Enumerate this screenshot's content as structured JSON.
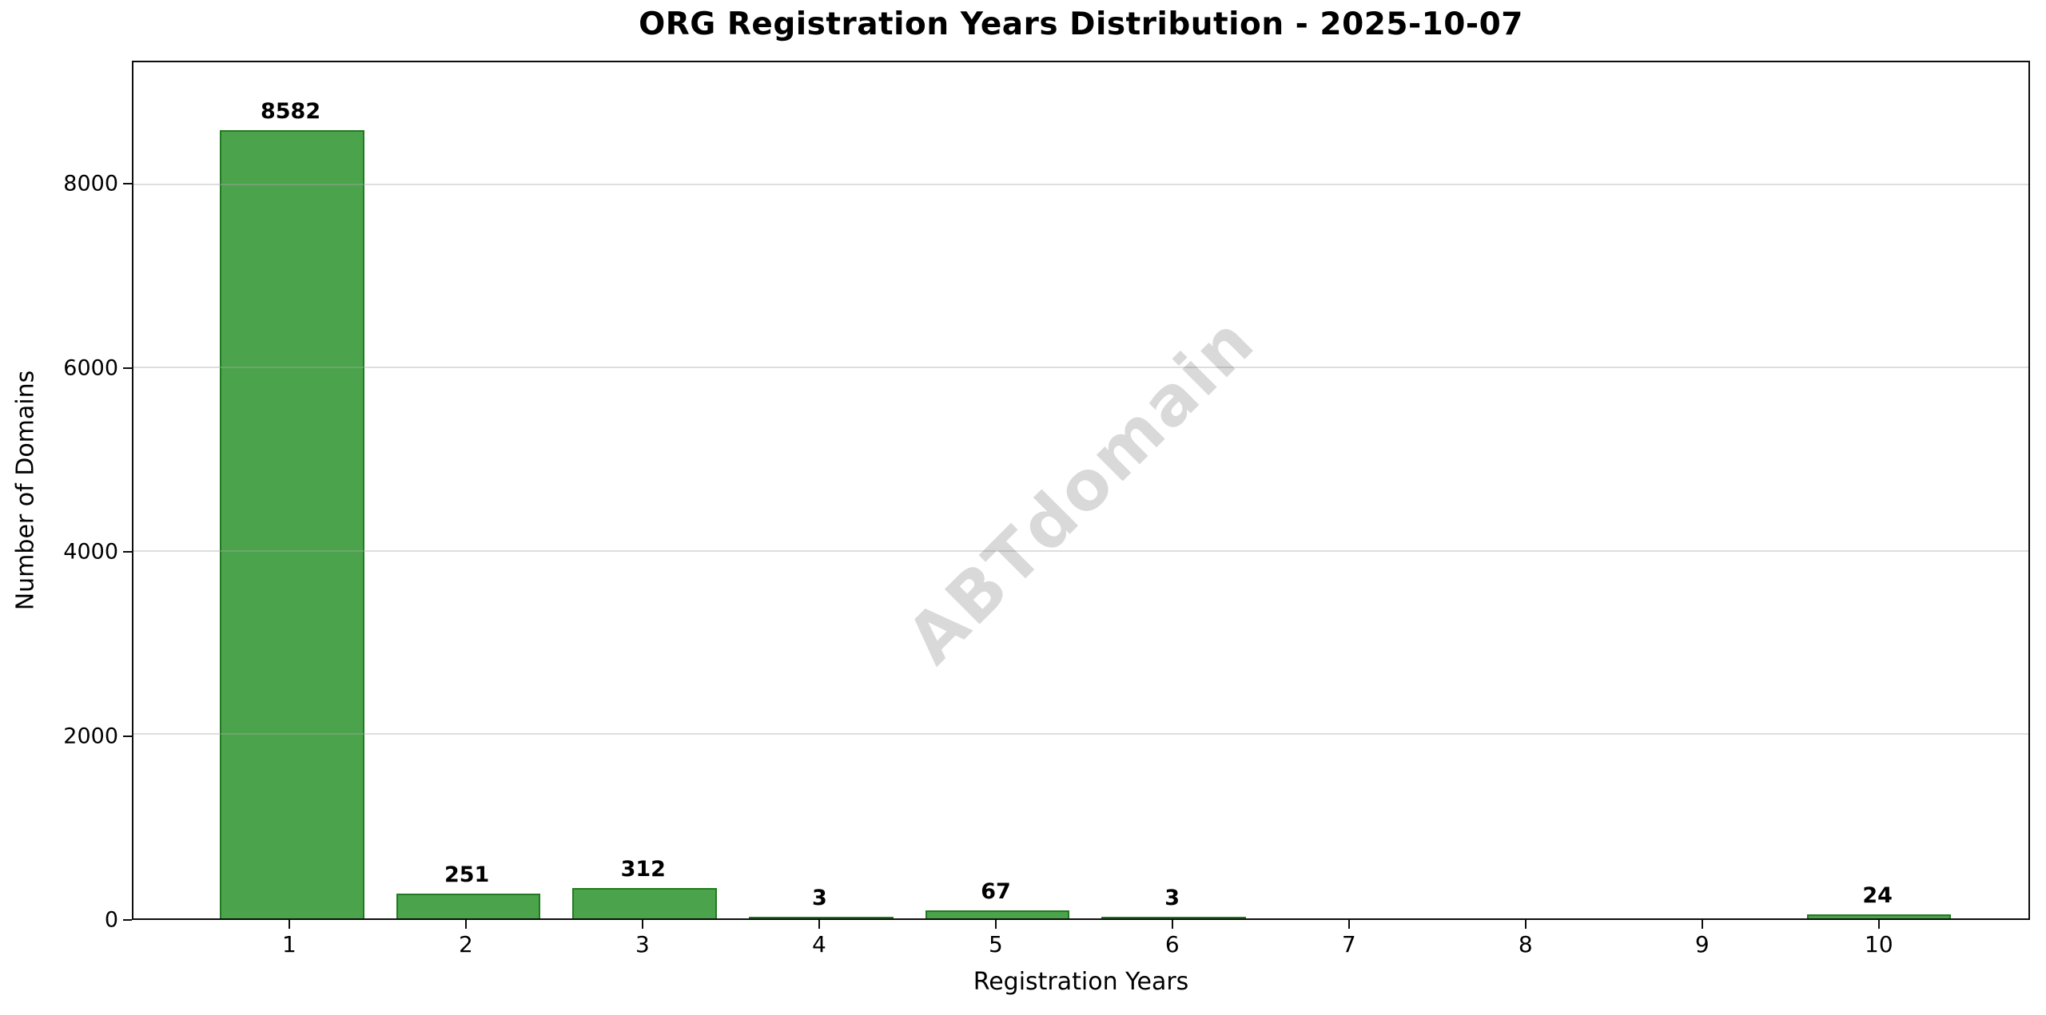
{
  "chart": {
    "title": "ORG Registration Years Distribution - 2025-10-07",
    "xlabel": "Registration Years",
    "ylabel": "Number of Domains",
    "watermark": "ABTdomain"
  },
  "chart_data": {
    "type": "bar",
    "title": "ORG Registration Years Distribution - 2025-10-07",
    "xlabel": "Registration Years",
    "ylabel": "Number of Domains",
    "categories": [
      "1",
      "2",
      "3",
      "4",
      "5",
      "6",
      "7",
      "8",
      "9",
      "10"
    ],
    "values": [
      8582,
      251,
      312,
      3,
      67,
      3,
      0,
      0,
      0,
      24
    ],
    "value_labels_shown_for_nonzero_only": true,
    "yticks": [
      0,
      2000,
      4000,
      6000,
      8000
    ],
    "ylim": [
      0,
      9340
    ],
    "grid": true,
    "legend_position": "none",
    "bar_color": "#4ba44b",
    "bar_edge_color": "#217a21",
    "grid_color": "rgba(168,168,168,0.38)",
    "watermark_text": "ABTdomain"
  }
}
